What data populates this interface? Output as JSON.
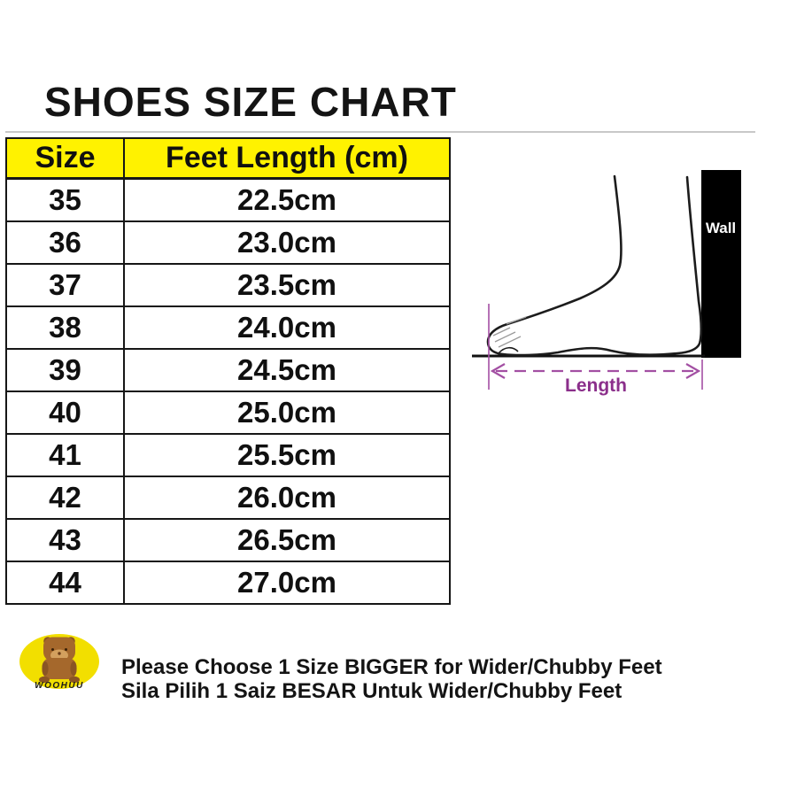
{
  "title": "SHOES SIZE CHART",
  "chart_data": {
    "type": "table",
    "title": "SHOES SIZE CHART",
    "columns": [
      "Size",
      "Feet Length (cm)"
    ],
    "rows": [
      [
        "35",
        "22.5cm"
      ],
      [
        "36",
        "23.0cm"
      ],
      [
        "37",
        "23.5cm"
      ],
      [
        "38",
        "24.0cm"
      ],
      [
        "39",
        "24.5cm"
      ],
      [
        "40",
        "25.0cm"
      ],
      [
        "41",
        "25.5cm"
      ],
      [
        "42",
        "26.0cm"
      ],
      [
        "43",
        "26.5cm"
      ],
      [
        "44",
        "27.0cm"
      ]
    ],
    "header_bg": "#FFF200",
    "grid": true
  },
  "diagram": {
    "wall_label": "Wall",
    "length_label": "Length",
    "purple": "#8B2F8B",
    "dash_purple": "#A34FA3",
    "wall_color": "#000000"
  },
  "logo": {
    "brand": "WOOHUU",
    "badge_color": "#F2DF00",
    "bear_color": "#A5682C"
  },
  "note": {
    "line1": "Please Choose 1 Size BIGGER for Wider/Chubby Feet",
    "line2": "Sila Pilih 1 Saiz BESAR Untuk Wider/Chubby Feet"
  }
}
